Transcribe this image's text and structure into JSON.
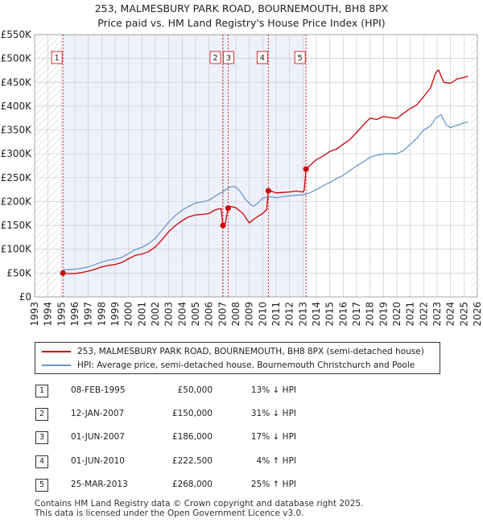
{
  "title": {
    "line1": "253, MALMESBURY PARK ROAD, BOURNEMOUTH, BH8 8PX",
    "line2": "Price paid vs. HM Land Registry's House Price Index (HPI)"
  },
  "colors": {
    "price": "#cc0000",
    "hpi": "#6699cc",
    "band": "#eef0fb",
    "grid": "#cccccc"
  },
  "chart_data": {
    "type": "line",
    "x_range": [
      1993,
      2026
    ],
    "ylim": [
      0,
      550000
    ],
    "y_ticks": [
      0,
      50000,
      100000,
      150000,
      200000,
      250000,
      300000,
      350000,
      400000,
      450000,
      500000,
      550000
    ],
    "y_tick_labels": [
      "£0",
      "£50K",
      "£100K",
      "£150K",
      "£200K",
      "£250K",
      "£300K",
      "£350K",
      "£400K",
      "£450K",
      "£500K",
      "£550K"
    ],
    "x_ticks": [
      1993,
      1994,
      1995,
      1996,
      1997,
      1998,
      1999,
      2000,
      2001,
      2002,
      2003,
      2004,
      2005,
      2006,
      2007,
      2008,
      2009,
      2010,
      2011,
      2012,
      2013,
      2014,
      2015,
      2016,
      2017,
      2018,
      2019,
      2020,
      2021,
      2022,
      2023,
      2024,
      2025,
      2026
    ],
    "series": [
      {
        "name": "253, MALMESBURY PARK ROAD, BOURNEMOUTH, BH8 8PX (semi-detached house)",
        "color": "#cc0000",
        "x": [
          1995.1,
          1995.5,
          1996,
          1996.5,
          1997,
          1997.5,
          1998,
          1998.5,
          1999,
          1999.5,
          2000,
          2000.5,
          2001,
          2001.5,
          2002,
          2002.5,
          2003,
          2003.5,
          2004,
          2004.5,
          2005,
          2005.5,
          2006,
          2006.5,
          2006.9,
          2007.04,
          2007.2,
          2007.42,
          2007.6,
          2008,
          2008.5,
          2009,
          2009.2,
          2009.6,
          2010,
          2010.3,
          2010.42,
          2010.6,
          2011,
          2011.5,
          2012,
          2012.5,
          2013,
          2013.1,
          2013.23,
          2013.5,
          2014,
          2014.5,
          2015,
          2015.5,
          2016,
          2016.5,
          2017,
          2017.5,
          2018,
          2018.5,
          2019,
          2019.5,
          2020,
          2020.5,
          2021,
          2021.5,
          2022,
          2022.5,
          2022.9,
          2023.1,
          2023.5,
          2024,
          2024.5,
          2025,
          2025.3
        ],
        "y": [
          50000,
          49000,
          49000,
          51000,
          54000,
          58000,
          63000,
          66000,
          68000,
          72000,
          80000,
          87000,
          90000,
          95000,
          105000,
          120000,
          137000,
          150000,
          160000,
          168000,
          172000,
          173000,
          175000,
          183000,
          185000,
          150000,
          152000,
          186000,
          190000,
          187000,
          176000,
          155000,
          160000,
          168000,
          175000,
          183000,
          222500,
          222000,
          218000,
          219000,
          220000,
          222000,
          220000,
          224000,
          268000,
          275000,
          288000,
          295000,
          305000,
          310000,
          320000,
          330000,
          345000,
          360000,
          375000,
          372000,
          378000,
          376000,
          374000,
          385000,
          395000,
          403000,
          420000,
          438000,
          470000,
          476000,
          450000,
          448000,
          457000,
          460000,
          463000
        ]
      },
      {
        "name": "HPI: Average price, semi-detached house, Bournemouth Christchurch and Poole",
        "color": "#6699cc",
        "x": [
          1995.1,
          1995.5,
          1996,
          1996.5,
          1997,
          1997.5,
          1998,
          1998.5,
          1999,
          1999.5,
          2000,
          2000.5,
          2001,
          2001.5,
          2002,
          2002.5,
          2003,
          2003.5,
          2004,
          2004.5,
          2005,
          2005.5,
          2006,
          2006.5,
          2007,
          2007.5,
          2007.9,
          2008.3,
          2008.7,
          2009,
          2009.3,
          2009.7,
          2010,
          2010.5,
          2011,
          2011.5,
          2012,
          2012.5,
          2013,
          2013.5,
          2014,
          2014.5,
          2015,
          2015.5,
          2016,
          2016.5,
          2017,
          2017.5,
          2018,
          2018.5,
          2019,
          2019.5,
          2020,
          2020.5,
          2021,
          2021.5,
          2022,
          2022.5,
          2022.9,
          2023.3,
          2023.7,
          2024,
          2024.5,
          2025,
          2025.3
        ],
        "y": [
          57000,
          57000,
          58000,
          60000,
          63000,
          68000,
          73000,
          77000,
          79000,
          83000,
          91000,
          99000,
          104000,
          112000,
          123000,
          140000,
          157000,
          171000,
          182000,
          190000,
          197000,
          199000,
          203000,
          212000,
          220000,
          230000,
          232000,
          222000,
          205000,
          196000,
          190000,
          198000,
          207000,
          210000,
          208000,
          210000,
          212000,
          213000,
          214000,
          218000,
          225000,
          233000,
          240000,
          248000,
          255000,
          265000,
          275000,
          283000,
          293000,
          297000,
          300000,
          300000,
          300000,
          307000,
          320000,
          333000,
          350000,
          358000,
          375000,
          382000,
          360000,
          355000,
          360000,
          365000,
          367000
        ]
      }
    ],
    "sales": [
      {
        "n": "1",
        "x": 1995.11,
        "price": 50000
      },
      {
        "n": "2",
        "x": 2007.04,
        "price": 150000
      },
      {
        "n": "3",
        "x": 2007.42,
        "price": 186000
      },
      {
        "n": "4",
        "x": 2010.42,
        "price": 222500
      },
      {
        "n": "5",
        "x": 2013.23,
        "price": 268000
      }
    ]
  },
  "legend": {
    "price": "253, MALMESBURY PARK ROAD, BOURNEMOUTH, BH8 8PX (semi-detached house)",
    "hpi": "HPI: Average price, semi-detached house, Bournemouth Christchurch and Poole"
  },
  "sales_table": [
    {
      "n": "1",
      "date": "08-FEB-1995",
      "price": "£50,000",
      "hpi": "13% ↓ HPI"
    },
    {
      "n": "2",
      "date": "12-JAN-2007",
      "price": "£150,000",
      "hpi": "31% ↓ HPI"
    },
    {
      "n": "3",
      "date": "01-JUN-2007",
      "price": "£186,000",
      "hpi": "17% ↓ HPI"
    },
    {
      "n": "4",
      "date": "01-JUN-2010",
      "price": "£222,500",
      "hpi": "4% ↑ HPI"
    },
    {
      "n": "5",
      "date": "25-MAR-2013",
      "price": "£268,000",
      "hpi": "25% ↑ HPI"
    }
  ],
  "footer": {
    "line1": "Contains HM Land Registry data © Crown copyright and database right 2025.",
    "line2": "This data is licensed under the Open Government Licence v3.0."
  }
}
